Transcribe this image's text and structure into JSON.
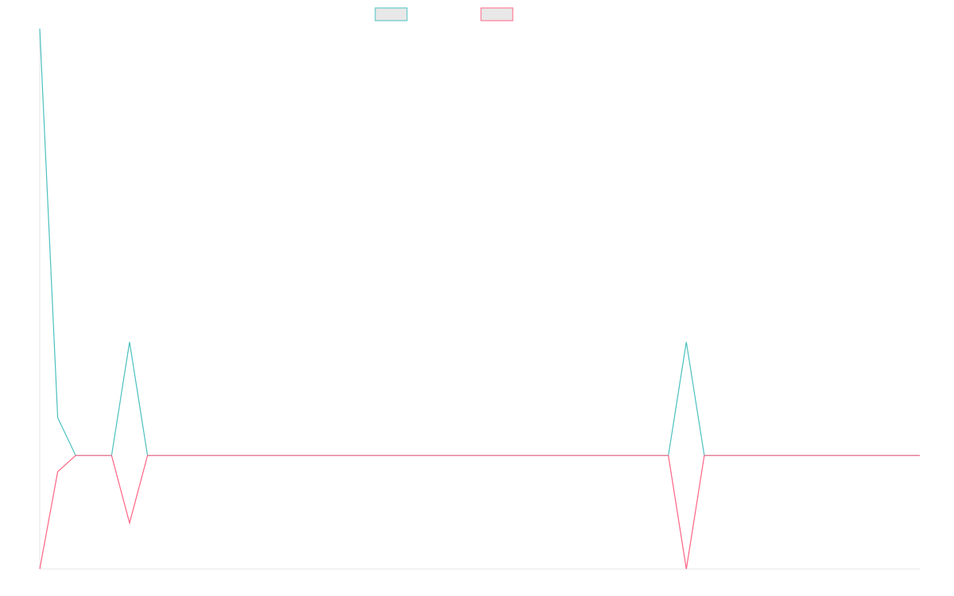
{
  "chart_data": {
    "type": "line",
    "title": "",
    "xlabel": "",
    "ylabel": "",
    "grid": false,
    "legend": {
      "placement": "top-center",
      "show_labels": false
    },
    "x": [
      1,
      2,
      3,
      4,
      5,
      6,
      7,
      8,
      9,
      10,
      11,
      12,
      13,
      14,
      15,
      16,
      17,
      18,
      19,
      20,
      21,
      22,
      23,
      24,
      25,
      26,
      27,
      28,
      29,
      30,
      31,
      32,
      33,
      34,
      35,
      36,
      37,
      38,
      39,
      40,
      41,
      42,
      43,
      44,
      45,
      46,
      47,
      48,
      49,
      50
    ],
    "xlim": [
      1,
      50
    ],
    "ylim": [
      0,
      100
    ],
    "series": [
      {
        "color": "#4bc0c0",
        "fill": "#e8e8e8",
        "values": [
          100,
          28,
          21,
          21,
          21,
          42,
          21,
          21,
          21,
          21,
          21,
          21,
          21,
          21,
          21,
          21,
          21,
          21,
          21,
          21,
          21,
          21,
          21,
          21,
          21,
          21,
          21,
          21,
          21,
          21,
          21,
          21,
          21,
          21,
          21,
          21,
          42,
          21,
          21,
          21,
          21,
          21,
          21,
          21,
          21,
          21,
          21,
          21,
          21,
          21
        ]
      },
      {
        "color": "#ff6384",
        "fill": "#e8e8e8",
        "values": [
          0,
          18,
          21,
          21,
          21,
          8.5,
          21,
          21,
          21,
          21,
          21,
          21,
          21,
          21,
          21,
          21,
          21,
          21,
          21,
          21,
          21,
          21,
          21,
          21,
          21,
          21,
          21,
          21,
          21,
          21,
          21,
          21,
          21,
          21,
          21,
          21,
          0,
          21,
          21,
          21,
          21,
          21,
          21,
          21,
          21,
          21,
          21,
          21,
          21,
          21
        ]
      }
    ]
  }
}
